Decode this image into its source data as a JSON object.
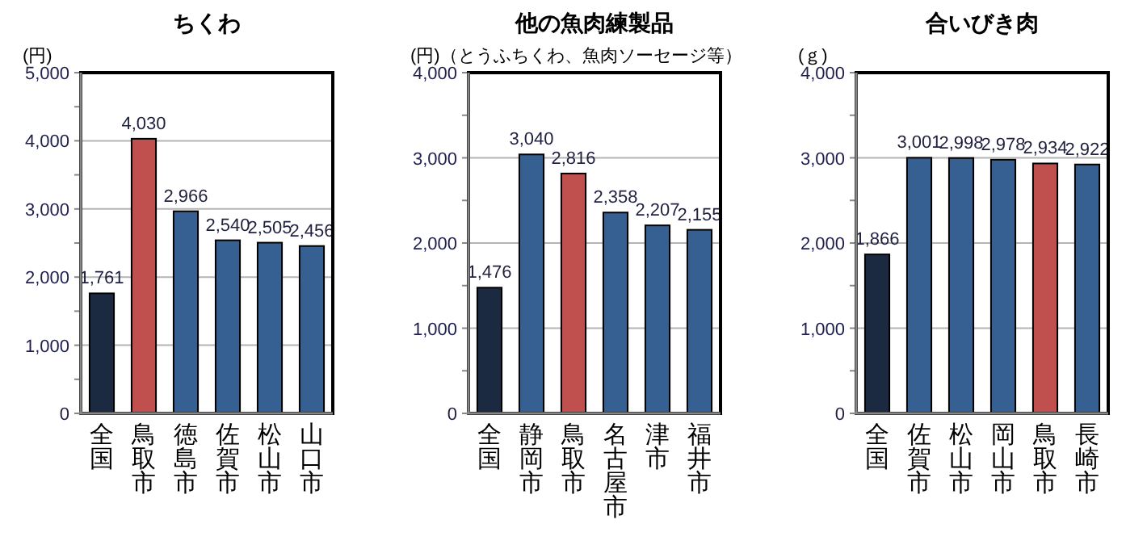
{
  "chart_data": [
    {
      "type": "bar",
      "title": "ちくわ",
      "ylabel": "(円)",
      "categories": [
        "全国",
        "鳥取市",
        "徳島市",
        "佐賀市",
        "松山市",
        "山口市"
      ],
      "values": [
        1761,
        4030,
        2966,
        2540,
        2505,
        2456
      ],
      "value_labels": [
        "1,761",
        "4,030",
        "2,966",
        "2,540",
        "2,505",
        "2,456"
      ],
      "colors": [
        "#1b2a41",
        "#c0504d",
        "#376092",
        "#376092",
        "#376092",
        "#376092"
      ],
      "ylim": [
        0,
        5000
      ],
      "yticks": [
        {
          "value": 0,
          "label": "0"
        },
        {
          "value": 500,
          "label": null
        },
        {
          "value": 1000,
          "label": "1,000"
        },
        {
          "value": 1500,
          "label": null
        },
        {
          "value": 2000,
          "label": "2,000"
        },
        {
          "value": 2500,
          "label": null
        },
        {
          "value": 3000,
          "label": "3,000"
        },
        {
          "value": 3500,
          "label": null
        },
        {
          "value": 4000,
          "label": "4,000"
        },
        {
          "value": 4500,
          "label": null
        },
        {
          "value": 5000,
          "label": "5,000"
        }
      ],
      "grid": "y"
    },
    {
      "type": "bar",
      "title": "他の魚肉練製品",
      "ylabel": "(円)（とうふちくわ、魚肉ソーセージ等）",
      "categories": [
        "全国",
        "静岡市",
        "鳥取市",
        "名古屋市",
        "津市",
        "福井市"
      ],
      "values": [
        1476,
        3040,
        2816,
        2358,
        2207,
        2155
      ],
      "value_labels": [
        "1,476",
        "3,040",
        "2,816",
        "2,358",
        "2,207",
        "2,155"
      ],
      "colors": [
        "#1b2a41",
        "#376092",
        "#c0504d",
        "#376092",
        "#376092",
        "#376092"
      ],
      "ylim": [
        0,
        4000
      ],
      "yticks": [
        {
          "value": 0,
          "label": "0"
        },
        {
          "value": 500,
          "label": null
        },
        {
          "value": 1000,
          "label": "1,000"
        },
        {
          "value": 1500,
          "label": null
        },
        {
          "value": 2000,
          "label": "2,000"
        },
        {
          "value": 2500,
          "label": null
        },
        {
          "value": 3000,
          "label": "3,000"
        },
        {
          "value": 3500,
          "label": null
        },
        {
          "value": 4000,
          "label": "4,000"
        }
      ],
      "grid": "y"
    },
    {
      "type": "bar",
      "title": "合いびき肉",
      "ylabel": "(ｇ)",
      "categories": [
        "全国",
        "佐賀市",
        "松山市",
        "岡山市",
        "鳥取市",
        "長崎市"
      ],
      "values": [
        1866,
        3001,
        2998,
        2978,
        2934,
        2922
      ],
      "value_labels": [
        "1,866",
        "3,001",
        "2,998",
        "2,978",
        "2,934",
        "2,922"
      ],
      "colors": [
        "#1b2a41",
        "#376092",
        "#376092",
        "#376092",
        "#c0504d",
        "#376092"
      ],
      "ylim": [
        0,
        4000
      ],
      "yticks": [
        {
          "value": 0,
          "label": "0"
        },
        {
          "value": 500,
          "label": null
        },
        {
          "value": 1000,
          "label": "1,000"
        },
        {
          "value": 1500,
          "label": null
        },
        {
          "value": 2000,
          "label": "2,000"
        },
        {
          "value": 2500,
          "label": null
        },
        {
          "value": 3000,
          "label": "3,000"
        },
        {
          "value": 3500,
          "label": null
        },
        {
          "value": 4000,
          "label": "4,000"
        }
      ],
      "grid": "y"
    }
  ]
}
